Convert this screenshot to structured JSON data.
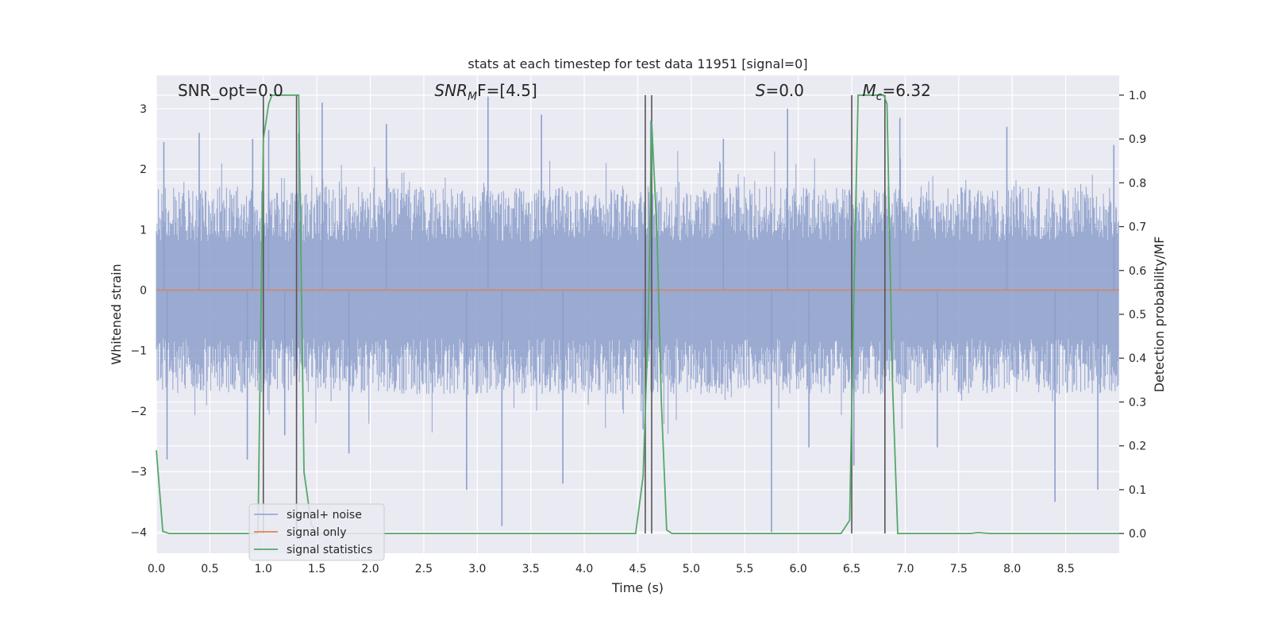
{
  "chart_data": {
    "type": "line",
    "title": "stats at each timestep for test data 11951 [signal=0]",
    "xlabel": "Time (s)",
    "ylabel": "Whitened strain",
    "y2label": "Detection probability/MF",
    "xlim": [
      0,
      9.0
    ],
    "ylim": [
      -4.35,
      3.55
    ],
    "y2lim": [
      -0.045,
      1.045
    ],
    "x_ticks": [
      0.0,
      0.5,
      1.0,
      1.5,
      2.0,
      2.5,
      3.0,
      3.5,
      4.0,
      4.5,
      5.0,
      5.5,
      6.0,
      6.5,
      7.0,
      7.5,
      8.0,
      8.5
    ],
    "x_tick_labels": [
      "0.0",
      "0.5",
      "1.0",
      "1.5",
      "2.0",
      "2.5",
      "3.0",
      "3.5",
      "4.0",
      "4.5",
      "5.0",
      "5.5",
      "6.0",
      "6.5",
      "7.0",
      "7.5",
      "8.0",
      "8.5"
    ],
    "y_ticks": [
      -4,
      -3,
      -2,
      -1,
      0,
      1,
      2,
      3
    ],
    "y_tick_labels": [
      "−4",
      "−3",
      "−2",
      "−1",
      "0",
      "1",
      "2",
      "3"
    ],
    "y2_ticks": [
      0.0,
      0.1,
      0.2,
      0.3,
      0.4,
      0.5,
      0.6,
      0.7,
      0.8,
      0.9,
      1.0
    ],
    "y2_tick_labels": [
      "0.0",
      "0.1",
      "0.2",
      "0.3",
      "0.4",
      "0.5",
      "0.6",
      "0.7",
      "0.8",
      "0.9",
      "1.0"
    ],
    "grid": true,
    "legend_position": "bottom-left",
    "legend": [
      "signal+ noise",
      "signal only",
      "signal statistics"
    ],
    "annotations": [
      {
        "text": "SNR_opt=0.0",
        "x": 0.2
      },
      {
        "base": "SNR",
        "sub": "M",
        "rest": "F=[4.5]",
        "x": 2.6
      },
      {
        "base": "S",
        "sub": "",
        "rest": "=0.0",
        "x": 5.6
      },
      {
        "base": "M",
        "sub": "c",
        "rest": "=6.32",
        "x": 6.6
      }
    ],
    "series": [
      {
        "name": "signal+ noise",
        "color": "#8c9fcb",
        "kind": "noise",
        "envelope_typical": [
          -1.6,
          1.6
        ],
        "extremes": [
          {
            "x": 0.07,
            "y": 2.45
          },
          {
            "x": 0.1,
            "y": -2.8
          },
          {
            "x": 0.4,
            "y": 2.6
          },
          {
            "x": 0.9,
            "y": 2.5
          },
          {
            "x": 0.85,
            "y": -2.8
          },
          {
            "x": 1.05,
            "y": 2.65
          },
          {
            "x": 1.2,
            "y": -2.4
          },
          {
            "x": 1.33,
            "y": 2.6
          },
          {
            "x": 1.55,
            "y": 3.1
          },
          {
            "x": 1.8,
            "y": -2.7
          },
          {
            "x": 2.15,
            "y": 2.75
          },
          {
            "x": 2.9,
            "y": -3.3
          },
          {
            "x": 3.1,
            "y": 3.2
          },
          {
            "x": 3.23,
            "y": -3.9
          },
          {
            "x": 3.6,
            "y": 2.9
          },
          {
            "x": 3.8,
            "y": -3.2
          },
          {
            "x": 4.55,
            "y": -2.3
          },
          {
            "x": 4.62,
            "y": 2.8
          },
          {
            "x": 5.3,
            "y": 2.5
          },
          {
            "x": 5.75,
            "y": -4.0
          },
          {
            "x": 5.9,
            "y": 3.0
          },
          {
            "x": 6.1,
            "y": -2.6
          },
          {
            "x": 6.52,
            "y": -2.9
          },
          {
            "x": 6.95,
            "y": 2.85
          },
          {
            "x": 7.3,
            "y": -2.6
          },
          {
            "x": 7.95,
            "y": 2.7
          },
          {
            "x": 8.4,
            "y": -3.5
          },
          {
            "x": 8.8,
            "y": -3.3
          },
          {
            "x": 8.95,
            "y": 2.4
          }
        ]
      },
      {
        "name": "signal only",
        "color": "#dd8452",
        "x": [
          0.0,
          9.0
        ],
        "y": [
          0.0,
          0.0
        ]
      },
      {
        "name": "signal statistics",
        "color": "#55a868",
        "axis": "right",
        "x": [
          0.0,
          0.06,
          0.12,
          0.2,
          0.9,
          0.95,
          1.0,
          1.05,
          1.08,
          1.3,
          1.33,
          1.38,
          1.45,
          1.5,
          4.48,
          4.55,
          4.6,
          4.63,
          4.68,
          4.72,
          4.77,
          4.82,
          4.9,
          6.4,
          6.48,
          6.52,
          6.56,
          6.6,
          6.8,
          6.83,
          6.88,
          6.93,
          7.0,
          7.6,
          7.68,
          7.8,
          9.0
        ],
        "y": [
          0.19,
          0.005,
          0.0,
          0.0,
          0.0,
          0.0,
          0.9,
          0.98,
          1.0,
          1.0,
          1.0,
          0.14,
          0.02,
          0.0,
          0.0,
          0.13,
          0.5,
          0.94,
          0.68,
          0.3,
          0.008,
          0.0,
          0.0,
          0.0,
          0.03,
          0.55,
          1.0,
          1.0,
          1.0,
          0.98,
          0.35,
          0.0,
          0.0,
          0.0,
          0.002,
          0.0,
          0.0
        ]
      },
      {
        "name": "markers",
        "color": "#555555",
        "kind": "vlines",
        "x": [
          1.0,
          1.31,
          4.57,
          4.63,
          6.5,
          6.81
        ],
        "y_top": 1.0
      }
    ]
  }
}
